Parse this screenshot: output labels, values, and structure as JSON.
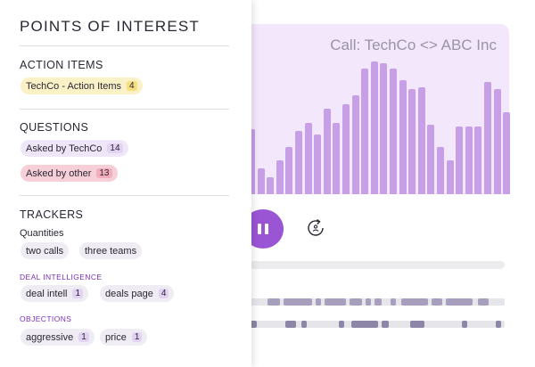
{
  "call": {
    "title": "Call: TechCo <> ABC Inc",
    "waveform_levels": [
      0.38,
      0.15,
      0.1,
      0.2,
      0.28,
      0.37,
      0.42,
      0.35,
      0.5,
      0.42,
      0.53,
      0.58,
      0.74,
      0.78,
      0.77,
      0.74,
      0.67,
      0.62,
      0.63,
      0.41,
      0.28,
      0.2,
      0.4,
      0.4,
      0.4,
      0.66,
      0.62,
      0.48
    ]
  },
  "player": {
    "pause_icon": "pause-icon",
    "replay_icon": "replay-icon",
    "accent_color": "#9a55d4"
  },
  "panel": {
    "title": "POINTS OF INTEREST",
    "action_items": {
      "title": "ACTION ITEMS",
      "chips": [
        {
          "label": "TechCo - Action Items",
          "count": "4"
        }
      ]
    },
    "questions": {
      "title": "QUESTIONS",
      "chips": [
        {
          "label": "Asked by TechCo",
          "count": "14"
        },
        {
          "label": "Asked by other",
          "count": "13"
        }
      ]
    },
    "trackers": {
      "title": "TRACKERS",
      "quantities_label": "Quantities",
      "quantities": [
        {
          "label": "two calls"
        },
        {
          "label": "three teams"
        }
      ],
      "deal_intel_label": "DEAL INTELLIGENCE",
      "deal_intel": [
        {
          "label": "deal intell",
          "count": "1"
        },
        {
          "label": "deals page",
          "count": "4"
        }
      ],
      "objections_label": "OBJECTIONS",
      "objections": [
        {
          "label": "aggressive",
          "count": "1"
        },
        {
          "label": "price",
          "count": "1"
        }
      ]
    }
  },
  "colors": {
    "action_chip": "#fbf1c7",
    "question_chip": "#efe7f7",
    "question_other_chip": "#f7cfd8",
    "tracker_chip": "#efedf3"
  }
}
